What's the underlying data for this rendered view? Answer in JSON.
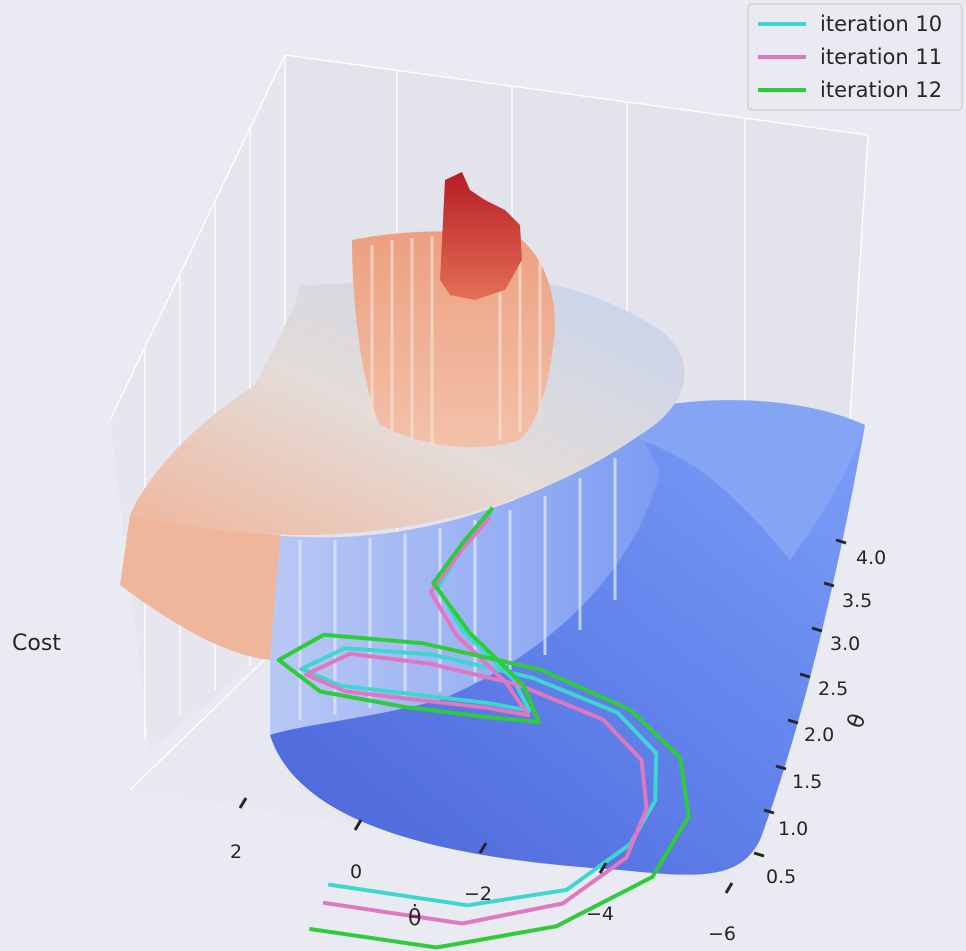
{
  "chart_data": {
    "type": "surface3d",
    "zlabel": "Cost",
    "xlabel": "θ̇",
    "ylabel": "θ",
    "x_ticks": [
      "2",
      "0",
      "−2",
      "−4",
      "−6"
    ],
    "y_ticks": [
      "0.5",
      "1.0",
      "1.5",
      "2.0",
      "2.5",
      "3.0",
      "3.5",
      "4.0"
    ],
    "legend_position": "top-right",
    "series": [
      {
        "name": "iteration 10",
        "color": "#40d6d0",
        "points": [
          [
            0.8,
            1.7
          ],
          [
            -1.5,
            1.75
          ],
          [
            -3.0,
            2.1
          ],
          [
            -3.8,
            2.7
          ],
          [
            -4.0,
            3.2
          ],
          [
            -3.8,
            3.7
          ],
          [
            -3.0,
            4.05
          ],
          [
            -1.5,
            4.25
          ],
          [
            0.2,
            4.3
          ],
          [
            1.6,
            4.2
          ],
          [
            2.2,
            3.9
          ],
          [
            1.5,
            3.8
          ],
          [
            0.3,
            3.85
          ],
          [
            -0.9,
            3.9
          ],
          [
            -1.6,
            3.9
          ],
          [
            -1.2,
            4.2
          ],
          [
            -0.2,
            4.6
          ],
          [
            0.4,
            5.0
          ],
          [
            0.2,
            5.5
          ],
          [
            -0.1,
            5.9
          ]
        ]
      },
      {
        "name": "iteration 11",
        "color": "#e077c1",
        "points": [
          [
            0.8,
            1.5
          ],
          [
            -1.5,
            1.55
          ],
          [
            -3.0,
            1.95
          ],
          [
            -3.8,
            2.55
          ],
          [
            -3.9,
            3.1
          ],
          [
            -3.6,
            3.6
          ],
          [
            -2.8,
            3.95
          ],
          [
            -1.3,
            4.15
          ],
          [
            0.2,
            4.2
          ],
          [
            1.5,
            4.15
          ],
          [
            2.1,
            3.85
          ],
          [
            1.4,
            3.75
          ],
          [
            0.2,
            3.8
          ],
          [
            -0.9,
            3.85
          ],
          [
            -1.6,
            3.85
          ],
          [
            -1.1,
            4.15
          ],
          [
            -0.1,
            4.55
          ],
          [
            0.5,
            4.95
          ],
          [
            0.2,
            5.45
          ],
          [
            -0.1,
            5.85
          ]
        ]
      },
      {
        "name": "iteration 12",
        "color": "#2ecc3a",
        "points": [
          [
            0.9,
            1.2
          ],
          [
            -1.2,
            1.25
          ],
          [
            -3.0,
            1.7
          ],
          [
            -4.3,
            2.4
          ],
          [
            -4.6,
            3.1
          ],
          [
            -4.2,
            3.7
          ],
          [
            -3.2,
            4.1
          ],
          [
            -1.6,
            4.35
          ],
          [
            0.4,
            4.4
          ],
          [
            2.0,
            4.3
          ],
          [
            2.6,
            3.95
          ],
          [
            1.8,
            3.7
          ],
          [
            0.4,
            3.7
          ],
          [
            -0.9,
            3.75
          ],
          [
            -1.8,
            3.8
          ],
          [
            -1.4,
            4.15
          ],
          [
            -0.3,
            4.6
          ],
          [
            0.5,
            5.05
          ],
          [
            0.2,
            5.55
          ],
          [
            -0.1,
            5.95
          ]
        ]
      }
    ]
  }
}
